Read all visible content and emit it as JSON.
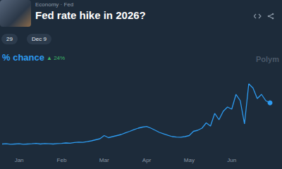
{
  "chart_data": {
    "type": "line",
    "title": "Fed rate hike in 2026?",
    "subtitle": "Economy · Fed",
    "annotations": [
      "29",
      "Dec 9",
      "% chance",
      "▲ 24%",
      "Polym"
    ],
    "categories": [
      null,
      null,
      null,
      null,
      "Jan",
      null,
      null,
      null,
      null,
      null,
      null,
      null,
      null,
      null,
      "Feb",
      null,
      null,
      null,
      null,
      null,
      null,
      null,
      null,
      null,
      "Mar",
      null,
      null,
      null,
      null,
      null,
      null,
      null,
      null,
      null,
      "Apr",
      null,
      null,
      null,
      null,
      null,
      null,
      null,
      null,
      null,
      "May",
      null,
      null,
      null,
      null,
      null,
      null,
      null,
      null,
      null,
      "Jun",
      null,
      null,
      null,
      null,
      null,
      null,
      null,
      null,
      null
    ],
    "values": [
      3.5,
      3.6,
      3.4,
      3.5,
      3.6,
      3.4,
      3.5,
      3.6,
      3.8,
      3.5,
      3.7,
      3.6,
      3.5,
      3.7,
      3.8,
      4.0,
      3.9,
      4.2,
      4.4,
      4.3,
      4.6,
      5.0,
      5.5,
      6.0,
      7.5,
      6.5,
      7.0,
      7.5,
      8.0,
      8.8,
      9.5,
      10.3,
      11.0,
      11.5,
      11.8,
      11.0,
      10.0,
      9.0,
      8.3,
      7.6,
      7.0,
      6.8,
      6.7,
      7.0,
      7.5,
      9.5,
      10.0,
      11.0,
      13.5,
      12.0,
      18.0,
      15.0,
      19.0,
      21.0,
      20.0,
      27.0,
      24.0,
      13.0,
      32.0,
      30.0,
      25.0,
      27.0,
      24.0,
      23.0
    ],
    "color": "#2d9bf0",
    "ylim": [
      0,
      40
    ],
    "yticks": [
      0,
      10,
      20,
      30,
      40
    ],
    "grid": false,
    "tick_labels": "x"
  }
}
